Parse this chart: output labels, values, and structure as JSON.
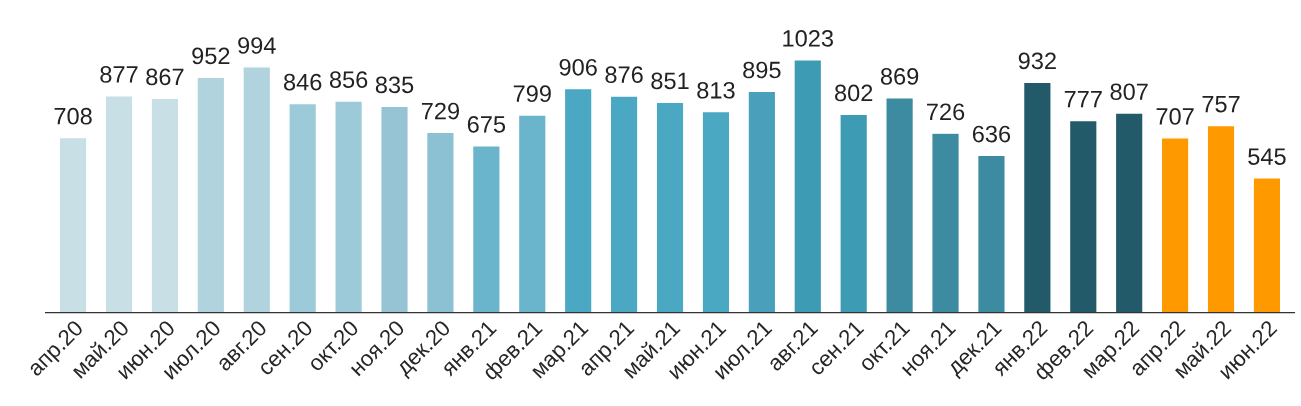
{
  "chart_data": {
    "type": "bar",
    "categories": [
      "апр.20",
      "май.20",
      "июн.20",
      "июл.20",
      "авг.20",
      "сен.20",
      "окт.20",
      "ноя.20",
      "дек.20",
      "янв.21",
      "фев.21",
      "мар.21",
      "апр.21",
      "май.21",
      "июн.21",
      "июл.21",
      "авг.21",
      "сен.21",
      "окт.21",
      "ноя.21",
      "дек.21",
      "янв.22",
      "фев.22",
      "мар.22",
      "апр.22",
      "май.22",
      "июн.22"
    ],
    "values": [
      708,
      877,
      867,
      952,
      994,
      846,
      856,
      835,
      729,
      675,
      799,
      906,
      876,
      851,
      813,
      895,
      1023,
      802,
      869,
      726,
      636,
      932,
      777,
      807,
      707,
      757,
      545
    ],
    "colors": [
      "#c8dfe6",
      "#c8dfe6",
      "#c8dfe6",
      "#b0d3de",
      "#b0d3de",
      "#9ccad8",
      "#9ccad8",
      "#97c4d4",
      "#8cc0d3",
      "#6ab5cb",
      "#6ab5cb",
      "#4aa8c3",
      "#4aa8c3",
      "#4aa8c3",
      "#4aa8c3",
      "#4a9fbb",
      "#3d9bb4",
      "#3d9bb4",
      "#3c8ba0",
      "#3c8ba0",
      "#3c8ba0",
      "#225a6a",
      "#225a6a",
      "#225a6a",
      "#ff9900",
      "#ff9900",
      "#ff9900"
    ],
    "data_labels": true,
    "tick_labels": "x",
    "grid": false,
    "legend": false
  }
}
